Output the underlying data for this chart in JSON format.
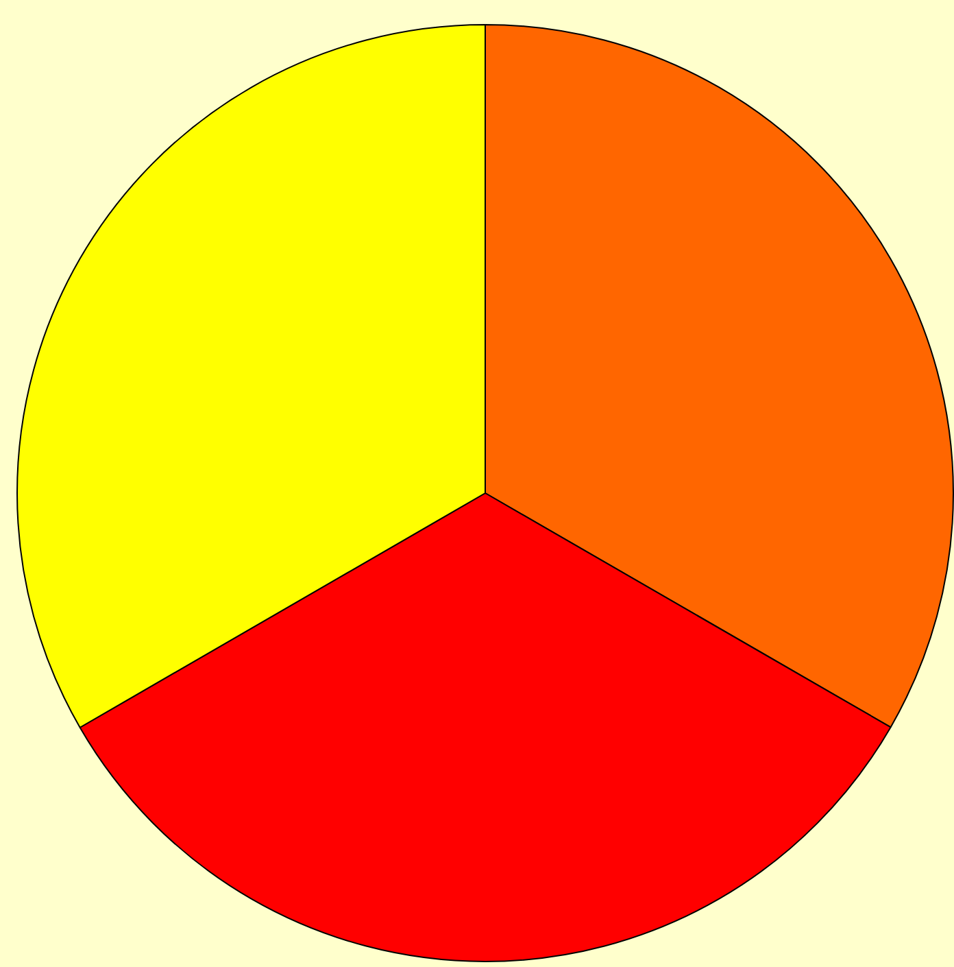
{
  "chart_data": {
    "type": "pie",
    "categories": [
      null,
      null,
      null
    ],
    "values": [
      33.33,
      33.33,
      33.34
    ],
    "colors": [
      "#ff6600",
      "#ff0000",
      "#ffff00"
    ],
    "legend": false
  }
}
